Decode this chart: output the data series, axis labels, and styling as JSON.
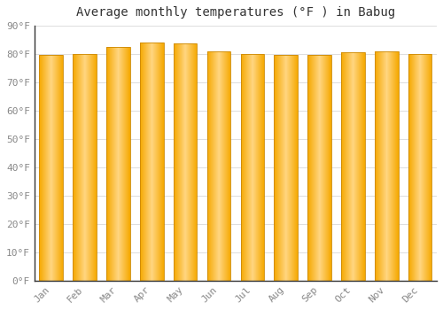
{
  "title": "Average monthly temperatures (°F ) in Babug",
  "months": [
    "Jan",
    "Feb",
    "Mar",
    "Apr",
    "May",
    "Jun",
    "Jul",
    "Aug",
    "Sep",
    "Oct",
    "Nov",
    "Dec"
  ],
  "values": [
    79.7,
    80.1,
    82.4,
    84.0,
    83.8,
    81.1,
    79.9,
    79.7,
    79.7,
    80.5,
    81.0,
    80.1
  ],
  "ylim": [
    0,
    90
  ],
  "yticks": [
    0,
    10,
    20,
    30,
    40,
    50,
    60,
    70,
    80,
    90
  ],
  "bar_color_center": "#FFD580",
  "bar_color_edge": "#F5A800",
  "bar_border_color": "#CC8800",
  "background_color": "#FFFFFF",
  "grid_color": "#DDDDDD",
  "title_fontsize": 10,
  "tick_fontsize": 8,
  "font_family": "monospace",
  "tick_color": "#888888",
  "title_color": "#333333"
}
